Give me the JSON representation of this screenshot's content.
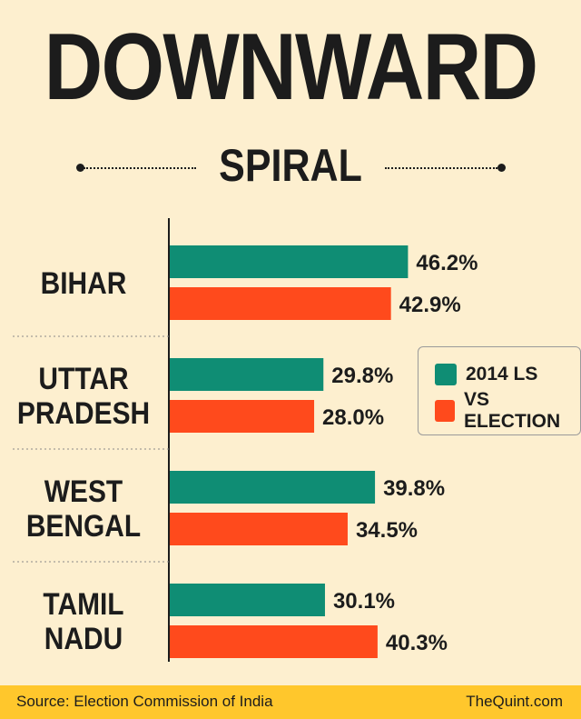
{
  "title": "DOWNWARD",
  "subtitle": "SPIRAL",
  "colors": {
    "background": "#fdefcf",
    "series_2014": "#0f8d74",
    "series_vs": "#ff4a1c",
    "footer": "#ffc72c"
  },
  "legend": {
    "items": [
      "2014 LS",
      "VS ELECTION"
    ]
  },
  "chart_data": {
    "type": "bar",
    "orientation": "horizontal",
    "categories": [
      [
        "BIHAR"
      ],
      [
        "UTTAR",
        "PRADESH"
      ],
      [
        "WEST",
        "BENGAL"
      ],
      [
        "TAMIL",
        "NADU"
      ]
    ],
    "series": [
      {
        "name": "2014 LS",
        "values": [
          46.2,
          29.8,
          39.8,
          30.1
        ],
        "labels": [
          "46.2%",
          "29.8%",
          "39.8%",
          "30.1%"
        ],
        "color": "#0f8d74"
      },
      {
        "name": "VS ELECTION",
        "values": [
          42.9,
          28.0,
          34.5,
          40.3
        ],
        "labels": [
          "42.9%",
          "28.0%",
          "34.5%",
          "40.3%"
        ],
        "color": "#ff4a1c"
      }
    ],
    "legend_position": "right",
    "grid": false
  },
  "footer": {
    "source": "Source: Election Commission of India",
    "brand": "TheQuint.com"
  }
}
